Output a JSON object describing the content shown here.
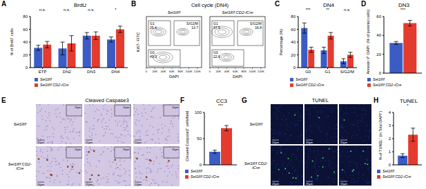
{
  "panel_labels": [
    "A",
    "B",
    "C",
    "D",
    "E",
    "F",
    "G",
    "H"
  ],
  "chart_data": [
    {
      "type": "bar",
      "title": "BrdU",
      "y_label": "% of BrdU⁺ cells",
      "categories": [
        "ETP",
        "DN2",
        "DN3",
        "DN4"
      ],
      "series": [
        {
          "name": "Sel1lf/f",
          "color": "#3b5cc4",
          "values": [
            31,
            30,
            50,
            44
          ],
          "errors": [
            4,
            10,
            5,
            4
          ]
        },
        {
          "name": "Sel1lf/f CD2-iCre",
          "color": "#e33b2e",
          "values": [
            36,
            38,
            50,
            60
          ],
          "errors": [
            5,
            12,
            6,
            5
          ]
        }
      ],
      "significance": [
        "n.s.",
        "n.s.",
        "n.s.",
        "*"
      ],
      "ylim": [
        0,
        80
      ],
      "yticks": [
        0,
        20,
        40,
        60,
        80
      ]
    },
    {
      "type": "bar",
      "title": "DN4",
      "y_label": "Percentage (%)",
      "categories": [
        "G0",
        "G1",
        "S/G2/M"
      ],
      "series": [
        {
          "name": "Sel1lf/f",
          "color": "#3b5cc4",
          "values": [
            62,
            27,
            10
          ],
          "errors": [
            8,
            5,
            4
          ]
        },
        {
          "name": "Sel1lf/f CD2-iCre",
          "color": "#e33b2e",
          "values": [
            28,
            50,
            20
          ],
          "errors": [
            4,
            5,
            4
          ]
        }
      ],
      "significance": [
        "***",
        "**",
        "n.s."
      ],
      "ylim": [
        0,
        80
      ],
      "yticks": [
        0,
        20,
        40,
        60,
        80
      ]
    },
    {
      "type": "bar",
      "title": "DN3",
      "y_label": "Annexin V⁺ DAPI⁻ (% of parental cells)",
      "categories": [
        null
      ],
      "series": [
        {
          "name": "Sel1lf/f",
          "color": "#3b5cc4",
          "values": [
            32
          ],
          "errors": [
            1.5
          ]
        },
        {
          "name": "Sel1lf/f CD2-iCre",
          "color": "#e33b2e",
          "values": [
            53
          ],
          "errors": [
            3
          ]
        }
      ],
      "significance": [
        "***"
      ],
      "ylim": [
        0,
        60
      ],
      "yticks": [
        0,
        20,
        40,
        60
      ]
    },
    {
      "type": "bar",
      "title": "CC3",
      "y_label": "Cleaved Caspase3⁺ cells/field",
      "categories": [
        null
      ],
      "series": [
        {
          "name": "Sel1lf/f",
          "color": "#3b5cc4",
          "values": [
            25
          ],
          "errors": [
            3
          ]
        },
        {
          "name": "Sel1lf/f CD2-iCre",
          "color": "#e33b2e",
          "values": [
            70
          ],
          "errors": [
            5
          ]
        }
      ],
      "significance": [
        "***"
      ],
      "ylim": [
        0,
        100
      ],
      "yticks": [
        0,
        50,
        100
      ]
    },
    {
      "type": "bar",
      "title": "TUNEL",
      "y_label": "% of TUNEL⁺ (in Total DAPI⁺)",
      "categories": [
        null
      ],
      "series": [
        {
          "name": "Sel1lf/f",
          "color": "#3b5cc4",
          "values": [
            0.7
          ],
          "errors": [
            0.15
          ]
        },
        {
          "name": "Sel1lf/f CD2-iCre",
          "color": "#e33b2e",
          "values": [
            2.3
          ],
          "errors": [
            0.5
          ]
        }
      ],
      "significance": [
        "*"
      ],
      "ylim": [
        0,
        4
      ],
      "yticks": [
        0,
        1,
        2,
        3,
        4
      ]
    }
  ],
  "flow_cytometry": {
    "title": "Cell cycle (DN4)",
    "y_label": "Ki67- FITC",
    "x_label": "DAPI",
    "xlim": [
      0,
      130
    ],
    "xticks": [
      {
        "value": 0,
        "label": "0"
      },
      {
        "value": 20,
        "label": "20K"
      },
      {
        "value": 40,
        "label": "40K"
      },
      {
        "value": 60,
        "label": "60K"
      },
      {
        "value": 80,
        "label": "80K"
      },
      {
        "value": 100,
        "label": "100K"
      },
      {
        "value": 120,
        "label": "120K"
      }
    ],
    "plots": [
      {
        "name": "Sel1lf/f",
        "gates": [
          {
            "name": "G1",
            "value": 25.4
          },
          {
            "name": "S/G2/M",
            "value": 13.7
          },
          {
            "name": "G0",
            "value": 49.0
          }
        ]
      },
      {
        "name": "Sel1lf/f CD2-iCre",
        "gates": [
          {
            "name": "G1",
            "value": 57.5
          },
          {
            "name": "S/G2/M",
            "value": 16.8
          },
          {
            "name": "G0",
            "value": 22.6
          }
        ]
      }
    ]
  },
  "micrographs": [
    {
      "title": "Cleaved Caspase3",
      "rows": [
        "Sel1lf/f",
        "Sel1lf/f CD2-iCre"
      ],
      "scale_bar": "20μm",
      "inset_scale_bar": "10μm"
    },
    {
      "title": "TUNEL",
      "rows": [
        "Sel1lf/f",
        "Sel1lf/f CD2-iCre"
      ],
      "scale_bar": "20μm"
    }
  ]
}
